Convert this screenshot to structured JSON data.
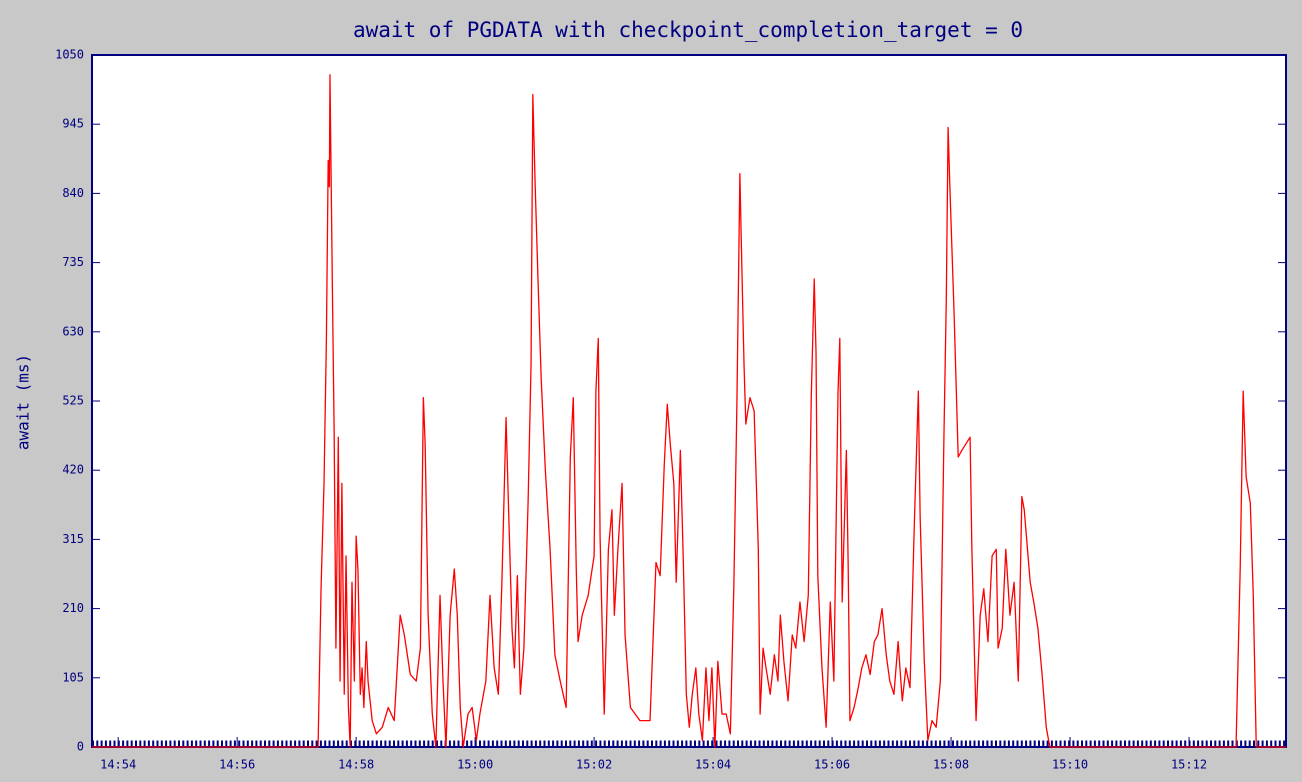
{
  "chart_data": {
    "type": "line",
    "title": "await of PGDATA with checkpoint_completion_target = 0",
    "y_label": "await (ms)",
    "color": "#ff0000",
    "x": [
      893.56,
      897.36,
      897.41,
      897.46,
      897.5,
      897.53,
      897.55,
      897.56,
      897.6,
      897.63,
      897.66,
      897.7,
      897.73,
      897.76,
      897.8,
      897.83,
      897.87,
      897.9,
      897.93,
      897.97,
      898.0,
      898.03,
      898.07,
      898.1,
      898.13,
      898.17,
      898.2,
      898.27,
      898.34,
      898.44,
      898.54,
      898.64,
      898.74,
      898.81,
      898.91,
      899.01,
      899.08,
      899.13,
      899.16,
      899.21,
      899.28,
      899.34,
      899.41,
      899.46,
      899.51,
      899.58,
      899.65,
      899.7,
      899.75,
      899.8,
      899.88,
      899.95,
      900.02,
      900.08,
      900.18,
      900.25,
      900.32,
      900.39,
      900.45,
      900.52,
      900.55,
      900.62,
      900.66,
      900.71,
      900.76,
      900.82,
      900.89,
      900.94,
      900.97,
      901.01,
      901.06,
      901.11,
      901.18,
      901.26,
      901.34,
      901.43,
      901.53,
      901.6,
      901.65,
      901.7,
      901.73,
      901.8,
      901.9,
      902.0,
      902.03,
      902.07,
      902.1,
      902.17,
      902.24,
      902.3,
      902.34,
      902.4,
      902.47,
      902.52,
      902.61,
      902.77,
      902.94,
      903.04,
      903.11,
      903.18,
      903.23,
      903.28,
      903.34,
      903.38,
      903.45,
      903.5,
      903.55,
      903.6,
      903.65,
      903.71,
      903.76,
      903.82,
      903.88,
      903.93,
      903.98,
      904.03,
      904.08,
      904.15,
      904.22,
      904.29,
      904.35,
      904.4,
      904.45,
      904.49,
      904.52,
      904.55,
      904.62,
      904.69,
      904.76,
      904.79,
      904.84,
      904.89,
      904.96,
      905.03,
      905.09,
      905.13,
      905.19,
      905.26,
      905.33,
      905.39,
      905.46,
      905.53,
      905.6,
      905.65,
      905.7,
      905.73,
      905.76,
      905.83,
      905.9,
      905.97,
      906.03,
      906.1,
      906.13,
      906.17,
      906.24,
      906.27,
      906.3,
      906.37,
      906.44,
      906.5,
      906.57,
      906.64,
      906.71,
      906.77,
      906.84,
      906.91,
      906.97,
      907.04,
      907.11,
      907.18,
      907.24,
      907.31,
      907.38,
      907.45,
      907.48,
      907.55,
      907.61,
      907.68,
      907.75,
      907.82,
      907.88,
      907.92,
      907.95,
      907.98,
      908.05,
      908.12,
      908.18,
      908.25,
      908.32,
      908.35,
      908.42,
      908.49,
      908.55,
      908.62,
      908.69,
      908.76,
      908.79,
      908.86,
      908.92,
      908.99,
      909.06,
      909.13,
      909.19,
      909.23,
      909.33,
      909.39,
      909.46,
      909.53,
      909.6,
      909.66,
      912.79,
      912.86,
      912.91,
      912.96,
      913.03,
      913.08,
      913.13,
      913.63
    ],
    "values": [
      0,
      0,
      240,
      400,
      620,
      890,
      850,
      1020,
      700,
      480,
      150,
      470,
      100,
      400,
      80,
      290,
      60,
      0,
      250,
      100,
      320,
      270,
      80,
      120,
      60,
      160,
      100,
      40,
      20,
      30,
      60,
      40,
      200,
      170,
      110,
      100,
      150,
      530,
      460,
      200,
      50,
      0,
      230,
      100,
      0,
      200,
      270,
      200,
      60,
      0,
      50,
      60,
      10,
      50,
      100,
      230,
      120,
      80,
      250,
      500,
      400,
      180,
      120,
      260,
      80,
      150,
      370,
      580,
      990,
      850,
      700,
      560,
      420,
      300,
      140,
      100,
      60,
      440,
      530,
      270,
      160,
      200,
      230,
      290,
      540,
      620,
      320,
      50,
      300,
      360,
      200,
      300,
      400,
      170,
      60,
      40,
      40,
      280,
      260,
      430,
      520,
      460,
      400,
      250,
      450,
      280,
      80,
      30,
      80,
      120,
      50,
      10,
      120,
      40,
      120,
      0,
      130,
      50,
      50,
      20,
      250,
      520,
      870,
      700,
      580,
      490,
      530,
      510,
      300,
      50,
      150,
      120,
      80,
      140,
      100,
      200,
      130,
      70,
      170,
      150,
      220,
      160,
      230,
      530,
      710,
      600,
      260,
      120,
      30,
      220,
      100,
      540,
      620,
      220,
      450,
      280,
      40,
      60,
      90,
      120,
      140,
      110,
      160,
      170,
      210,
      140,
      100,
      80,
      160,
      70,
      120,
      90,
      330,
      540,
      350,
      130,
      10,
      40,
      30,
      100,
      470,
      680,
      940,
      850,
      660,
      440,
      450,
      460,
      470,
      300,
      40,
      200,
      240,
      160,
      290,
      300,
      150,
      180,
      300,
      200,
      250,
      100,
      380,
      360,
      250,
      220,
      180,
      110,
      30,
      0,
      0,
      270,
      540,
      410,
      370,
      230,
      0,
      0
    ],
    "xlim": [
      893.56,
      913.63
    ],
    "xticks": [
      {
        "value": 894,
        "label": "14:54"
      },
      {
        "value": 896,
        "label": "14:56"
      },
      {
        "value": 898,
        "label": "14:58"
      },
      {
        "value": 900,
        "label": "15:00"
      },
      {
        "value": 902,
        "label": "15:02"
      },
      {
        "value": 904,
        "label": "15:04"
      },
      {
        "value": 906,
        "label": "15:06"
      },
      {
        "value": 908,
        "label": "15:08"
      },
      {
        "value": 910,
        "label": "15:10"
      },
      {
        "value": 912,
        "label": "15:12"
      }
    ],
    "ylim": [
      0,
      1050
    ],
    "yticks": [
      0,
      105,
      210,
      315,
      420,
      525,
      630,
      735,
      840,
      945,
      1050
    ],
    "grid": false
  }
}
